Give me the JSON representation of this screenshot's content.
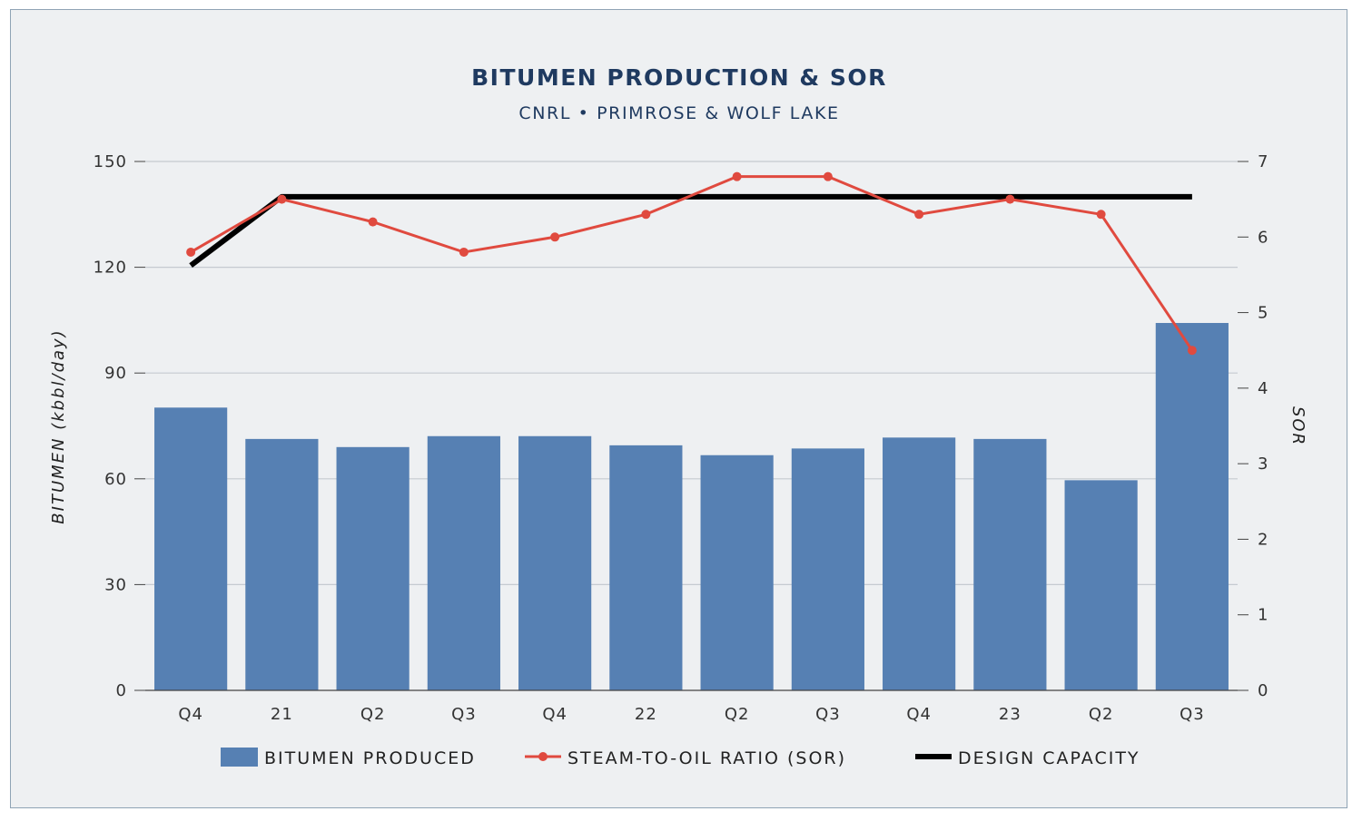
{
  "chart_data": {
    "type": "bar",
    "title": "BITUMEN PRODUCTION & SOR",
    "subtitle": "CNRL • PRIMROSE & WOLF LAKE",
    "categories": [
      "Q4",
      "21",
      "Q2",
      "Q3",
      "Q4",
      "22",
      "Q2",
      "Q3",
      "Q4",
      "23",
      "Q2",
      "Q3"
    ],
    "ylabel": "BITUMEN (kbbl/day)",
    "y2label": "SOR",
    "ylim": [
      0,
      150
    ],
    "y2lim": [
      0,
      7
    ],
    "yticks": [
      "0",
      "30",
      "60",
      "90",
      "120",
      "150"
    ],
    "y2ticks": [
      "0",
      "1",
      "2",
      "3",
      "4",
      "5",
      "6",
      "7"
    ],
    "grid": true,
    "legend_position": "bottom",
    "series": [
      {
        "name": "BITUMEN PRODUCED",
        "type": "bar",
        "axis": "left",
        "color": "#5680b3",
        "values": [
          80.2,
          71.3,
          69.0,
          72.1,
          72.1,
          69.5,
          66.7,
          68.6,
          71.7,
          71.3,
          59.6,
          104.2
        ]
      },
      {
        "name": "STEAM-TO-OIL RATIO (SOR)",
        "type": "line",
        "axis": "right",
        "color": "#e04a3f",
        "values": [
          5.8,
          6.5,
          6.2,
          5.8,
          6.0,
          6.3,
          6.8,
          6.8,
          6.3,
          6.5,
          6.3,
          4.5
        ]
      },
      {
        "name": "DESIGN CAPACITY",
        "type": "line",
        "axis": "left",
        "color": "#000000",
        "values": [
          120.5,
          140,
          140,
          140,
          140,
          140,
          140,
          140,
          140,
          140,
          140,
          140
        ]
      }
    ]
  }
}
